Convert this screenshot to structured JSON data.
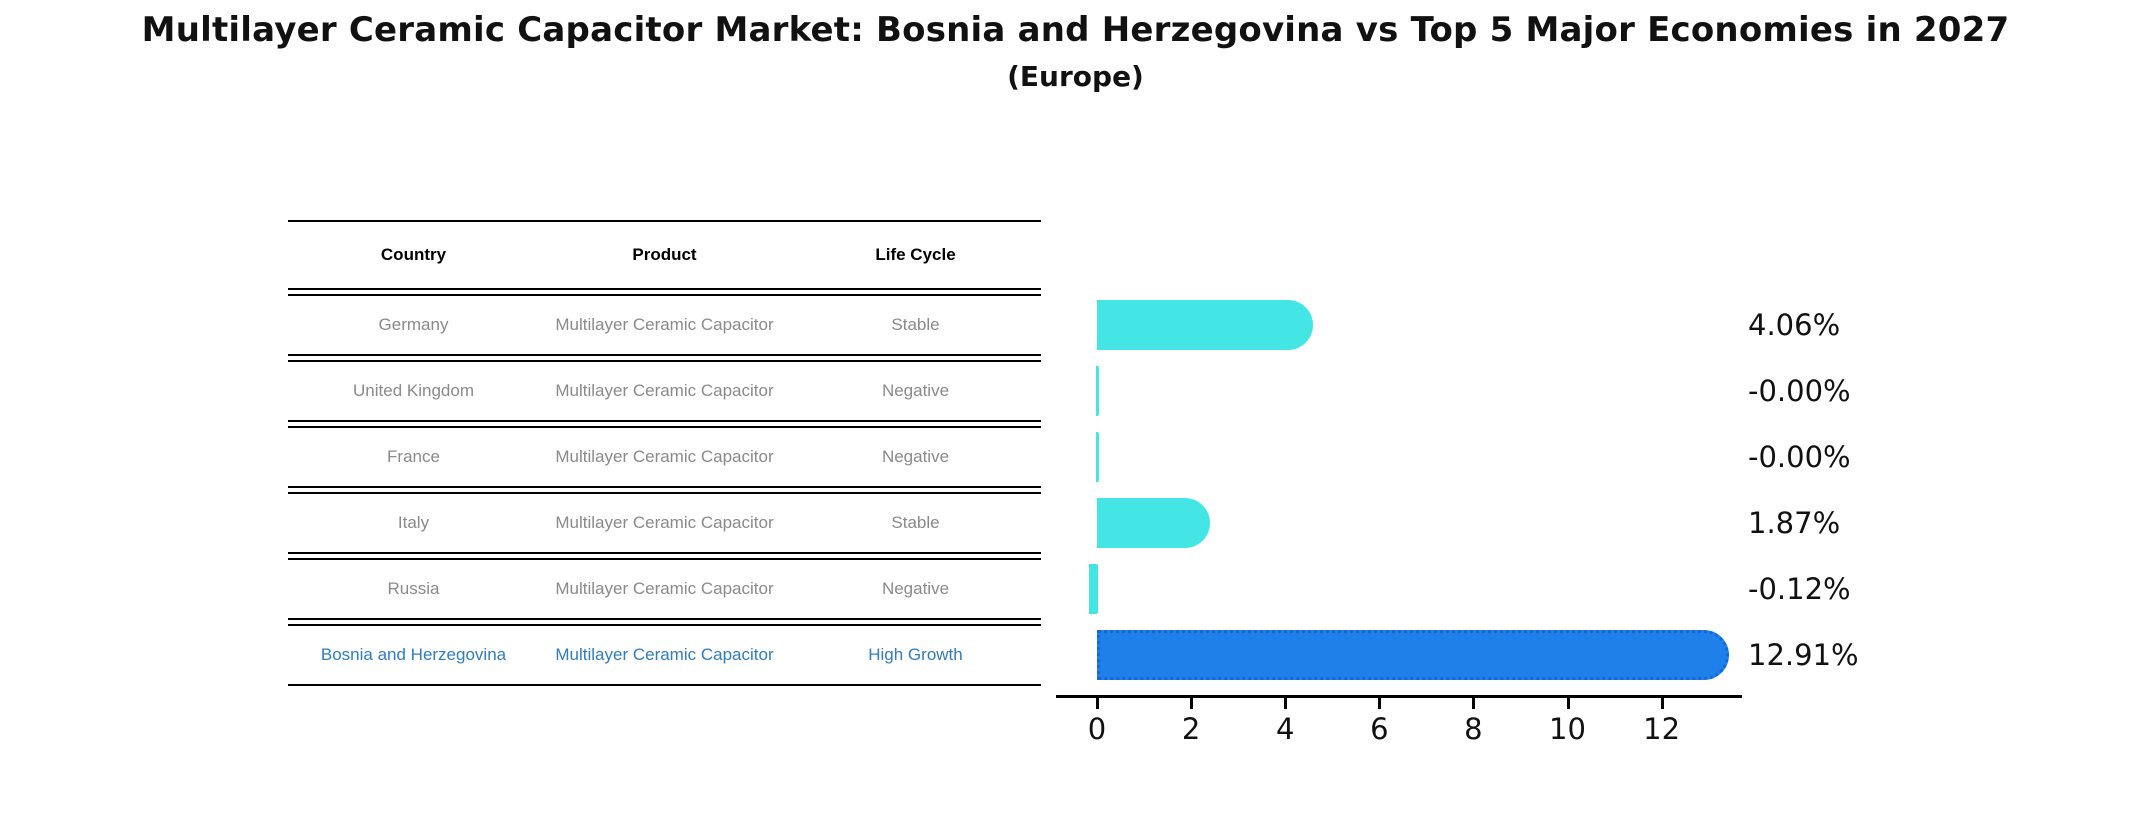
{
  "title": "Multilayer Ceramic Capacitor Market: Bosnia and Herzegovina vs Top 5 Major Economies in 2027",
  "subtitle": "(Europe)",
  "table": {
    "headers": [
      "Country",
      "Product",
      "Life Cycle"
    ],
    "rows": [
      {
        "country": "Germany",
        "product": "Multilayer Ceramic Capacitor",
        "life_cycle": "Stable",
        "highlight": false
      },
      {
        "country": "United Kingdom",
        "product": "Multilayer Ceramic Capacitor",
        "life_cycle": "Negative",
        "highlight": false
      },
      {
        "country": "France",
        "product": "Multilayer Ceramic Capacitor",
        "life_cycle": "Negative",
        "highlight": false
      },
      {
        "country": "Italy",
        "product": "Multilayer Ceramic Capacitor",
        "life_cycle": "Stable",
        "highlight": false
      },
      {
        "country": "Russia",
        "product": "Multilayer Ceramic Capacitor",
        "life_cycle": "Negative",
        "highlight": false
      },
      {
        "country": "Bosnia and Herzegovina",
        "product": "Multilayer Ceramic Capacitor",
        "life_cycle": "High Growth",
        "highlight": true
      }
    ]
  },
  "chart_data": {
    "type": "bar",
    "orientation": "horizontal",
    "title": "Multilayer Ceramic Capacitor Market: Bosnia and Herzegovina vs Top 5 Major Economies in 2027 (Europe)",
    "categories": [
      "Germany",
      "United Kingdom",
      "France",
      "Italy",
      "Russia",
      "Bosnia and Herzegovina"
    ],
    "values": [
      4.06,
      -0.0,
      -0.0,
      1.87,
      -0.12,
      12.91
    ],
    "value_labels": [
      "4.06%",
      "-0.00%",
      "-0.00%",
      "1.87%",
      "-0.12%",
      "12.91%"
    ],
    "x_ticks": [
      0,
      2,
      4,
      6,
      8,
      10,
      12
    ],
    "xlim": [
      -0.68,
      13.63
    ],
    "grid": false,
    "legend": false,
    "highlight_index": 5,
    "bar_color_default": "#43E5E5",
    "bar_color_highlight": "#1E80E8",
    "highlight_text_color": "#2f7dbe"
  }
}
